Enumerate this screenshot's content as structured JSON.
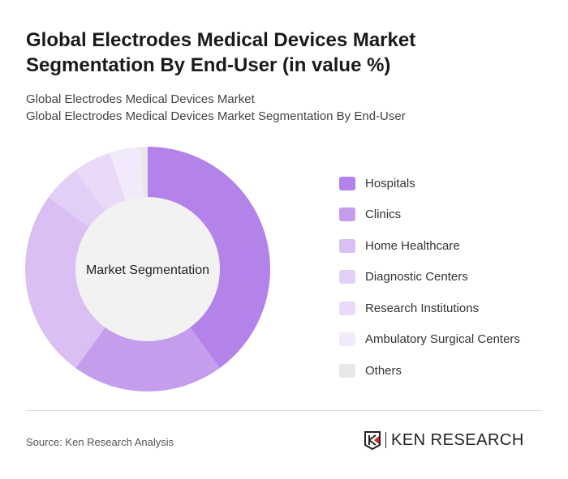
{
  "title": "Global Electrodes Medical Devices Market Segmentation By End-User (in value %)",
  "subtitle1": "Global Electrodes Medical Devices Market",
  "subtitle2": "Global Electrodes Medical Devices Market Segmentation By End-User",
  "source": "Source: Ken Research Analysis",
  "logo_text": "KEN RESEARCH",
  "chart_data": {
    "type": "pie",
    "variant": "donut",
    "center_label": "Market Segmentation",
    "legend_position": "right",
    "categories": [
      "Hospitals",
      "Clinics",
      "Home Healthcare",
      "Diagnostic Centers",
      "Research Institutions",
      "Ambulatory Surgical Centers",
      "Others"
    ],
    "values": [
      40,
      20,
      25,
      5,
      5,
      4,
      1
    ],
    "colors": [
      "#b483ea",
      "#c49ded",
      "#d9bff4",
      "#e2cff6",
      "#ead9f9",
      "#f2eafb",
      "#e8e8e8"
    ]
  }
}
